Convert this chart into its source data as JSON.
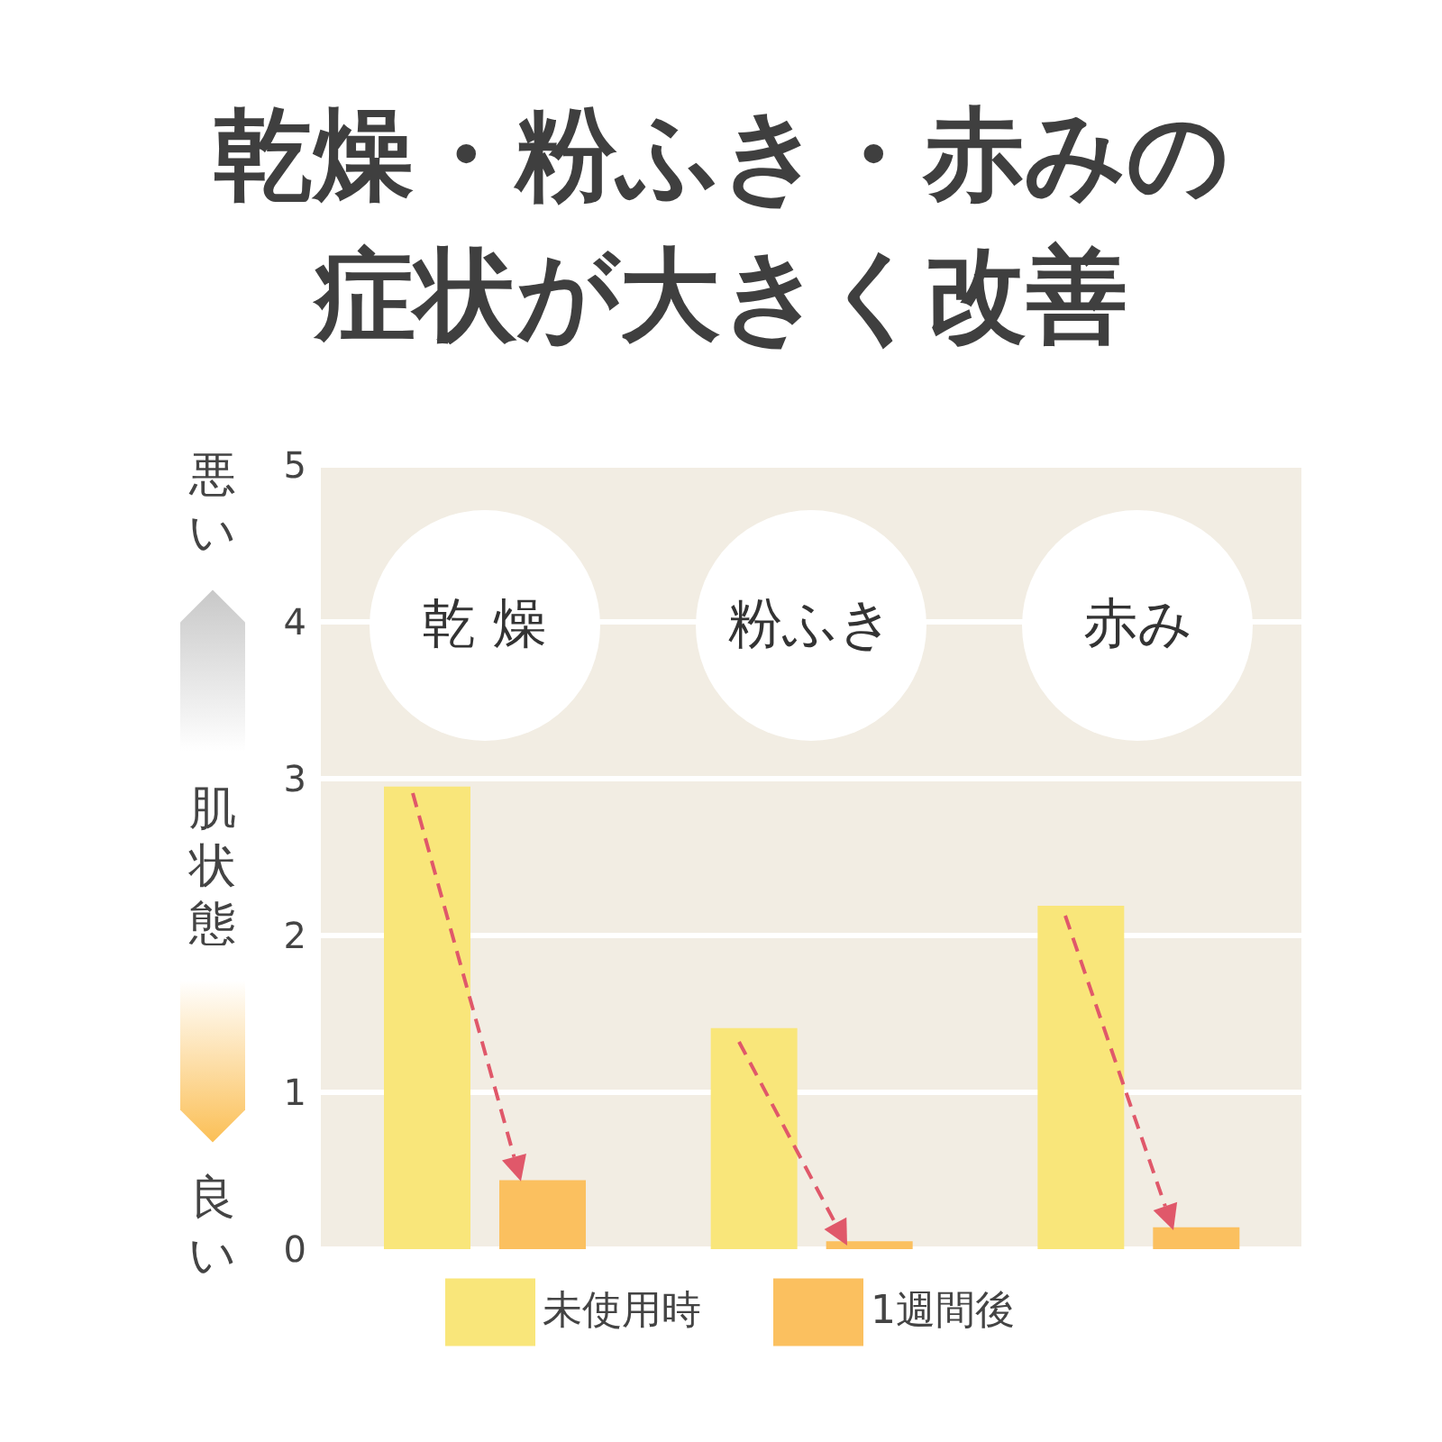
{
  "chart_data": {
    "type": "bar",
    "title": "乾燥・粉ふき・赤みの症状が大きく改善",
    "ylabel": "肌状態",
    "annotations": [
      "悪い",
      "良い"
    ],
    "categories": [
      "乾 燥",
      "粉ふき",
      "赤み"
    ],
    "series": [
      {
        "name": "未使用時",
        "color": "#f9e67a",
        "values": [
          2.95,
          1.41,
          2.19
        ]
      },
      {
        "name": "1週間後",
        "color": "#fbc05f",
        "values": [
          0.44,
          0.05,
          0.14
        ]
      }
    ],
    "ylim": [
      0,
      5
    ],
    "yticks": [
      0,
      1,
      2,
      3,
      4,
      5
    ],
    "grid": "y",
    "legend": "bottom"
  }
}
